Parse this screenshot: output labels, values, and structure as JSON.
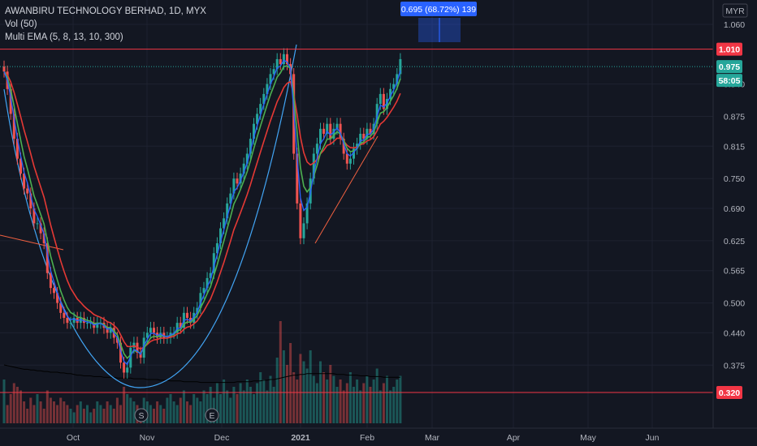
{
  "header": {
    "symbol_line": "AWANBIRU TECHNOLOGY BERHAD, 1D, MYX",
    "volume_line": "Vol (50)",
    "ema_line": "Multi EMA (5, 8, 13, 10, 300)"
  },
  "currency_label": "MYR",
  "measure_label": "0.695 (68.72%) 139",
  "colors": {
    "background": "#131722",
    "grid": "#1e2230",
    "up": "#26a69a",
    "down": "#ef5350",
    "ema_fast": "#2962ff",
    "ema_mid": "#4caf50",
    "ema_slow": "#e53935",
    "curve": "#42a5f5",
    "price_badge": "#26a69a",
    "level_line": "#f23645",
    "measure_box": "#2962ff"
  },
  "chart_data": {
    "type": "candlestick",
    "x_labels": [
      "Oct",
      "Nov",
      "Dec",
      "2021",
      "Feb",
      "Mar",
      "Apr",
      "May",
      "Jun"
    ],
    "y_ticks": [
      "1.060",
      "0.940",
      "0.875",
      "0.815",
      "0.750",
      "0.690",
      "0.625",
      "0.565",
      "0.500",
      "0.440",
      "0.375"
    ],
    "price_levels": [
      {
        "label": "1.010",
        "value": 1.01,
        "style": "red"
      },
      {
        "label": "0.975",
        "value": 0.975,
        "style": "green"
      },
      {
        "label": "0.320",
        "value": 0.32,
        "style": "red"
      }
    ],
    "countdown_label": "58:05",
    "event_markers": [
      "S",
      "E"
    ],
    "series_names": [],
    "closes": [
      0.965,
      0.93,
      0.88,
      0.83,
      0.79,
      0.76,
      0.73,
      0.72,
      0.69,
      0.66,
      0.66,
      0.64,
      0.62,
      0.56,
      0.53,
      0.52,
      0.5,
      0.48,
      0.47,
      0.46,
      0.46,
      0.47,
      0.46,
      0.47,
      0.46,
      0.46,
      0.46,
      0.45,
      0.46,
      0.46,
      0.45,
      0.44,
      0.45,
      0.43,
      0.42,
      0.38,
      0.36,
      0.37,
      0.41,
      0.42,
      0.4,
      0.39,
      0.43,
      0.44,
      0.45,
      0.44,
      0.43,
      0.44,
      0.43,
      0.43,
      0.44,
      0.44,
      0.46,
      0.45,
      0.48,
      0.47,
      0.46,
      0.48,
      0.49,
      0.52,
      0.53,
      0.55,
      0.56,
      0.6,
      0.62,
      0.65,
      0.67,
      0.7,
      0.72,
      0.75,
      0.74,
      0.76,
      0.78,
      0.8,
      0.83,
      0.86,
      0.88,
      0.9,
      0.92,
      0.94,
      0.96,
      0.97,
      0.99,
      0.98,
      1.0,
      0.98,
      0.96,
      0.8,
      0.7,
      0.63,
      0.66,
      0.7,
      0.75,
      0.8,
      0.82,
      0.85,
      0.84,
      0.86,
      0.83,
      0.85,
      0.86,
      0.83,
      0.8,
      0.78,
      0.79,
      0.81,
      0.82,
      0.84,
      0.83,
      0.85,
      0.84,
      0.86,
      0.9,
      0.92,
      0.89,
      0.91,
      0.93,
      0.94,
      0.96,
      0.99
    ],
    "volumes": [
      60,
      25,
      40,
      55,
      50,
      45,
      30,
      20,
      35,
      25,
      40,
      30,
      20,
      45,
      35,
      30,
      25,
      35,
      30,
      25,
      20,
      15,
      25,
      30,
      20,
      25,
      15,
      20,
      30,
      25,
      20,
      30,
      25,
      20,
      35,
      25,
      50,
      40,
      35,
      30,
      25,
      20,
      35,
      30,
      25,
      20,
      30,
      25,
      20,
      35,
      40,
      30,
      25,
      35,
      45,
      30,
      25,
      40,
      35,
      30,
      45,
      40,
      50,
      35,
      55,
      40,
      60,
      45,
      35,
      50,
      40,
      55,
      45,
      60,
      50,
      40,
      55,
      70,
      60,
      45,
      65,
      50,
      90,
      140,
      100,
      80,
      110,
      70,
      60,
      95,
      85,
      75,
      100,
      65,
      55,
      85,
      70,
      60,
      80,
      65,
      50,
      60,
      45,
      55,
      70,
      50,
      60,
      45,
      55,
      65,
      50,
      60,
      75,
      45,
      55,
      65,
      45,
      50,
      60,
      65
    ],
    "volume_ma": [
      80,
      79,
      78,
      77,
      76,
      75,
      74,
      74,
      73,
      73,
      72,
      72,
      71,
      71,
      70,
      70,
      70,
      69,
      69,
      68,
      68,
      67,
      66,
      66,
      65,
      65,
      65,
      64,
      64,
      64,
      63,
      63,
      63,
      63,
      62,
      62,
      62,
      62,
      62,
      61,
      61,
      61,
      61,
      60,
      60,
      60,
      60,
      59,
      59,
      59,
      58,
      58,
      58,
      58,
      57,
      57,
      57,
      57,
      57,
      56,
      56,
      56,
      56,
      56,
      56,
      56,
      56,
      56,
      56,
      56,
      57,
      57,
      57,
      57,
      57,
      58,
      58,
      58,
      59,
      59,
      60,
      60,
      61,
      62,
      63,
      64,
      65,
      66,
      66,
      67,
      67,
      68,
      68,
      68,
      68,
      68,
      68,
      68,
      68,
      68,
      67,
      67,
      67,
      66,
      66,
      66,
      66,
      65,
      65,
      65,
      64,
      64,
      64,
      64,
      63,
      63,
      63,
      63,
      63,
      63
    ]
  }
}
